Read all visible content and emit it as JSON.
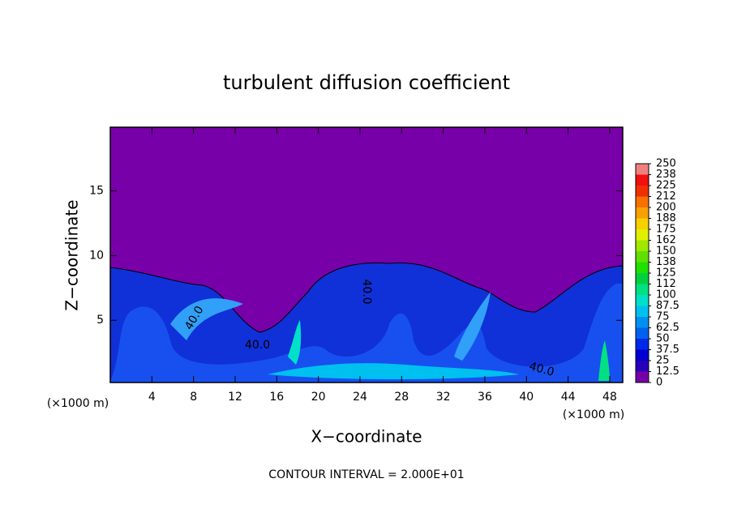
{
  "chart_data": {
    "type": "contour",
    "title": "turbulent diffusion coefficient",
    "x_label": "X−coordinate",
    "y_label": "Z−coordinate",
    "x_unit_labels": [
      "(×1000 m)",
      "(×1000 m)"
    ],
    "footer": "CONTOUR INTERVAL = 2.000E+01",
    "contour_labels": [
      "40.0",
      "40.0",
      "40.0",
      "40.0"
    ],
    "xlim": [
      0,
      49.25
    ],
    "xticks": [
      4,
      8,
      12,
      16,
      20,
      24,
      28,
      32,
      36,
      40,
      44,
      48
    ],
    "ylim": [
      0.2,
      19.9
    ],
    "yticks": [
      5,
      10,
      15
    ],
    "levels": [
      0,
      12.5,
      25,
      37.5,
      50,
      62.5,
      75,
      87.5,
      100,
      {
        "value": 112.5,
        "label": "112"
      },
      125,
      {
        "value": 137.5,
        "label": "138"
      },
      150,
      {
        "value": 162.5,
        "label": "162"
      },
      175,
      {
        "value": 187.5,
        "label": "188"
      },
      200,
      {
        "value": 212.5,
        "label": "212"
      },
      225,
      {
        "value": 237.5,
        "label": "238"
      },
      250
    ],
    "colors": [
      "#7800a8",
      "#2800b8",
      "#0000d0",
      "#0028e8",
      "#0060f0",
      "#0090f0",
      "#00c0f0",
      "#00e0c8",
      "#00e080",
      "#00d040",
      "#20e000",
      "#60e000",
      "#a0e800",
      "#e0f000",
      "#f8d000",
      "#f8a000",
      "#f87000",
      "#f03000",
      "#f01010",
      "#f08080"
    ]
  }
}
